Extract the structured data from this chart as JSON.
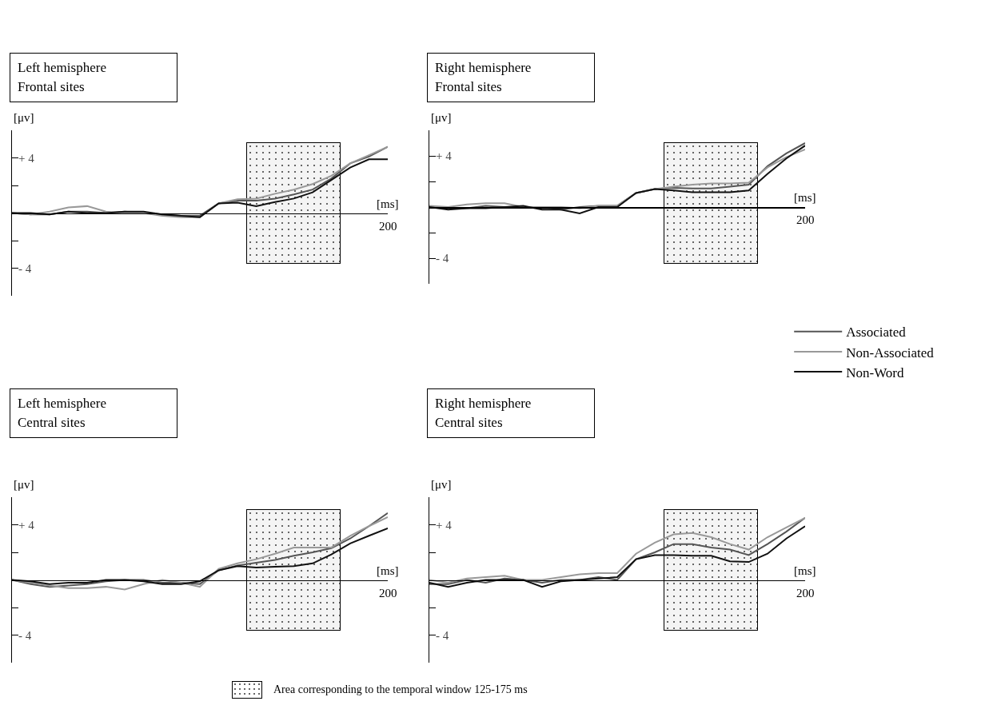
{
  "chart_data": [
    {
      "type": "line",
      "title": "Left hemisphere\nFrontal sites",
      "xlabel": "[ms]",
      "ylabel": "[μv]",
      "categories": [
        null,
        null,
        null,
        null,
        null,
        null,
        null,
        null,
        null,
        null,
        null,
        null,
        null,
        null,
        null,
        null,
        null,
        null,
        null,
        null,
        null
      ],
      "annotations": [
        "200"
      ],
      "ylim": [
        -6,
        6
      ],
      "yticks": [
        {
          "value": -4,
          "label": "- 4"
        },
        {
          "value": -2,
          "label": null
        },
        {
          "value": 2,
          "label": null
        },
        {
          "value": 4,
          "label": "+ 4"
        }
      ],
      "series": [
        {
          "color": "#555555",
          "values": [
            0,
            -0.1,
            -0.1,
            0.1,
            0.1,
            0,
            0.1,
            0,
            -0.1,
            -0.2,
            -0.2,
            0.7,
            0.9,
            0.9,
            1.05,
            1.35,
            1.7,
            2.5,
            3.6,
            4.1,
            4.8
          ]
        },
        {
          "color": "#999999",
          "values": [
            0,
            -0.1,
            0.1,
            0.4,
            0.5,
            0.1,
            0,
            0,
            -0.2,
            -0.3,
            -0.3,
            0.7,
            1.0,
            1.05,
            1.4,
            1.7,
            2.1,
            2.7,
            3.6,
            4.2,
            4.8
          ]
        },
        {
          "color": "#111111",
          "values": [
            0,
            0,
            -0.1,
            0.1,
            0,
            0,
            0.1,
            0.1,
            -0.1,
            -0.2,
            -0.3,
            0.7,
            0.75,
            0.5,
            0.8,
            1.05,
            1.5,
            2.4,
            3.3,
            3.9,
            3.9
          ]
        }
      ]
    },
    {
      "type": "line",
      "title": "Right hemisphere\nFrontal sites",
      "xlabel": "[ms]",
      "ylabel": "[μv]",
      "legend": "bottom right",
      "categories": [
        null,
        null,
        null,
        null,
        null,
        null,
        null,
        null,
        null,
        null,
        null,
        null,
        null,
        null,
        null,
        null,
        null,
        null,
        null,
        null,
        null
      ],
      "annotations": [
        "200"
      ],
      "ylim": [
        -6,
        6
      ],
      "yticks": [
        {
          "value": -4,
          "label": "- 4"
        },
        {
          "value": -2,
          "label": null
        },
        {
          "value": 2,
          "label": null
        },
        {
          "value": 4,
          "label": "+ 4"
        }
      ],
      "series": [
        {
          "name": "Associated",
          "color": "#555555",
          "values": [
            0,
            -0.1,
            -0.1,
            0.1,
            0,
            0,
            0,
            -0.2,
            0,
            0.1,
            0.1,
            1.1,
            1.4,
            1.5,
            1.45,
            1.45,
            1.6,
            1.75,
            3.2,
            4.2,
            5.0
          ]
        },
        {
          "name": "Non-Associated",
          "color": "#999999",
          "values": [
            0.1,
            0,
            0.2,
            0.3,
            0.3,
            0,
            0,
            0,
            -0.1,
            0.1,
            0.1,
            1.1,
            1.4,
            1.6,
            1.75,
            1.85,
            1.85,
            1.9,
            3.1,
            3.9,
            4.5
          ]
        },
        {
          "name": "Non-Word",
          "color": "#111111",
          "values": [
            0,
            -0.2,
            -0.1,
            -0.1,
            0,
            0.1,
            -0.2,
            -0.2,
            -0.5,
            0,
            0,
            1.1,
            1.4,
            1.3,
            1.15,
            1.15,
            1.15,
            1.3,
            2.6,
            3.8,
            4.8
          ]
        }
      ]
    },
    {
      "type": "line",
      "title": "Left hemisphere\nCentral sites",
      "xlabel": "[ms]",
      "ylabel": "[μv]",
      "categories": [
        null,
        null,
        null,
        null,
        null,
        null,
        null,
        null,
        null,
        null,
        null,
        null,
        null,
        null,
        null,
        null,
        null,
        null,
        null,
        null,
        null
      ],
      "annotations": [
        "200"
      ],
      "ylim": [
        -6,
        6
      ],
      "yticks": [
        {
          "value": -4,
          "label": "- 4"
        },
        {
          "value": -2,
          "label": null
        },
        {
          "value": 2,
          "label": null
        },
        {
          "value": 4,
          "label": "+ 4"
        }
      ],
      "series": [
        {
          "color": "#555555",
          "values": [
            0,
            -0.3,
            -0.5,
            -0.4,
            -0.3,
            -0.1,
            0,
            0,
            -0.2,
            -0.2,
            -0.3,
            0.7,
            1.05,
            1.25,
            1.45,
            1.75,
            2.0,
            2.3,
            3.0,
            3.9,
            4.85
          ]
        },
        {
          "color": "#999999",
          "values": [
            0,
            -0.2,
            -0.4,
            -0.6,
            -0.6,
            -0.5,
            -0.7,
            -0.3,
            0,
            -0.2,
            -0.5,
            0.8,
            1.2,
            1.5,
            1.9,
            2.35,
            2.35,
            2.35,
            3.2,
            3.9,
            4.55
          ]
        },
        {
          "color": "#111111",
          "values": [
            0,
            -0.1,
            -0.3,
            -0.2,
            -0.2,
            0,
            0,
            -0.1,
            -0.3,
            -0.3,
            -0.1,
            0.7,
            1.0,
            0.9,
            0.95,
            1.0,
            1.2,
            1.85,
            2.65,
            3.2,
            3.75
          ]
        }
      ]
    },
    {
      "type": "line",
      "title": "Right hemisphere\nCentral sites",
      "xlabel": "[ms]",
      "ylabel": "[μv]",
      "categories": [
        null,
        null,
        null,
        null,
        null,
        null,
        null,
        null,
        null,
        null,
        null,
        null,
        null,
        null,
        null,
        null,
        null,
        null,
        null,
        null,
        null
      ],
      "annotations": [
        "200",
        "Area corresponding to the temporal window 125-175 ms"
      ],
      "ylim": [
        -6,
        6
      ],
      "yticks": [
        {
          "value": -4,
          "label": "- 4"
        },
        {
          "value": -2,
          "label": null
        },
        {
          "value": 2,
          "label": null
        },
        {
          "value": 4,
          "label": "+ 4"
        }
      ],
      "series": [
        {
          "color": "#555555",
          "values": [
            -0.3,
            -0.3,
            0,
            -0.2,
            0.1,
            0,
            -0.2,
            0,
            0,
            0.2,
            0,
            1.5,
            2.0,
            2.6,
            2.6,
            2.35,
            2.2,
            1.8,
            2.6,
            3.5,
            4.5
          ]
        },
        {
          "color": "#999999",
          "values": [
            0,
            -0.2,
            0.1,
            0.2,
            0.3,
            0,
            0,
            0.2,
            0.4,
            0.5,
            0.5,
            1.9,
            2.7,
            3.3,
            3.4,
            3.1,
            2.6,
            2.2,
            3.1,
            3.8,
            4.5
          ]
        },
        {
          "color": "#111111",
          "values": [
            -0.2,
            -0.5,
            -0.2,
            0,
            0,
            0,
            -0.5,
            -0.1,
            0,
            0.1,
            0.2,
            1.5,
            1.8,
            1.8,
            1.75,
            1.75,
            1.35,
            1.3,
            1.9,
            3.0,
            3.9
          ]
        }
      ]
    }
  ]
}
